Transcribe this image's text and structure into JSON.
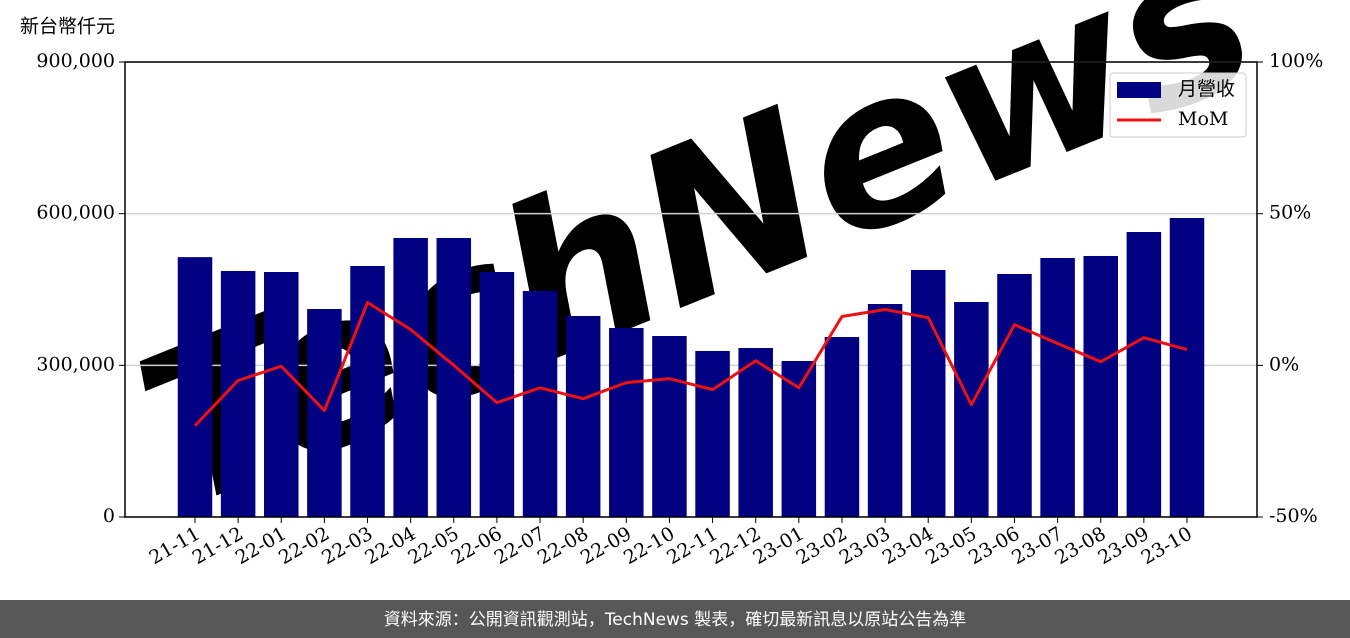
{
  "chart_data": {
    "type": "bar",
    "y_label": "新台幣仟元",
    "watermark": "TechNews",
    "source": "資料來源：公開資訊觀測站，TechNews 製表，確切最新訊息以原站公告為準",
    "categories": [
      "21-11",
      "21-12",
      "22-01",
      "22-02",
      "22-03",
      "22-04",
      "22-05",
      "22-06",
      "22-07",
      "22-08",
      "22-09",
      "22-10",
      "22-11",
      "22-12",
      "23-01",
      "23-02",
      "23-03",
      "23-04",
      "23-05",
      "23-06",
      "23-07",
      "23-08",
      "23-09",
      "23-10"
    ],
    "series": [
      {
        "name": "月營收",
        "type": "bar",
        "color": "#000080",
        "values": [
          514000,
          486600,
          484600,
          411400,
          496500,
          551900,
          551900,
          484600,
          447000,
          397600,
          373800,
          358000,
          328400,
          334300,
          308600,
          356000,
          421300,
          488600,
          425300,
          480700,
          512300,
          516300,
          563700,
          591400
        ]
      },
      {
        "name": "MoM",
        "type": "line",
        "axis": "y2",
        "color": "#ee1111",
        "values": [
          -19.9,
          -5.0,
          -0.3,
          -14.9,
          20.7,
          11.8,
          0,
          -12.3,
          -7.4,
          -11.0,
          -5.7,
          -4.4,
          -8.0,
          1.5,
          -7.4,
          16.1,
          18.4,
          15.7,
          -13.0,
          13.4,
          7.2,
          1.2,
          9.1,
          5.2
        ]
      }
    ],
    "ylim": [
      0,
      900000
    ],
    "yticks": [
      0,
      {
        "value": 300000,
        "label": "300,000"
      },
      {
        "value": 600000,
        "label": "600,000"
      },
      {
        "value": 900000,
        "label": "900,000"
      }
    ],
    "y2lim": [
      -50,
      100
    ],
    "y2ticks": [
      {
        "value": -50,
        "label": "-50%"
      },
      {
        "value": 0,
        "label": "0%"
      },
      {
        "value": 50,
        "label": "50%"
      },
      {
        "value": 100,
        "label": "100%"
      }
    ],
    "grid": true,
    "legend": "upper right"
  }
}
